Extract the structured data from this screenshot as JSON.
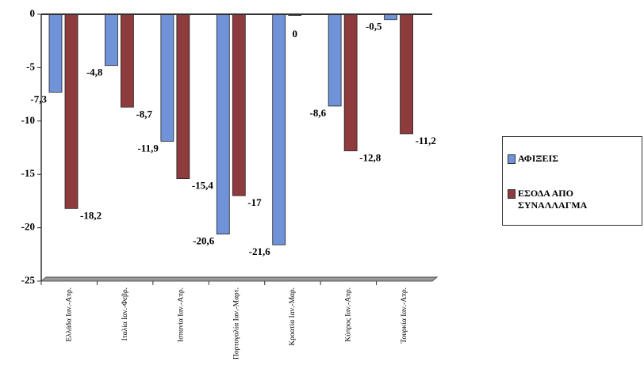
{
  "chart_data": {
    "type": "bar",
    "categories": [
      "Ελλάδα Ιαν.-Απρ.",
      "Ιταλία Ιαν.-Φεβρ.",
      "Ισπανία Ιαν.-Απρ.",
      "Πορτογαλία Ιαν.-Μαρτ.",
      "Κροατία Ιαν.-Μαρ.",
      "Κύπρος Ιαν.-Απρ.",
      "Τουρκία Ιαν.-Απρ."
    ],
    "series": [
      {
        "name": "ΑΦΙΞΕΙΣ",
        "color": "#6f92d8",
        "values": [
          -7.3,
          -4.8,
          -11.9,
          -20.6,
          -21.6,
          -8.6,
          -0.5
        ],
        "value_labels": [
          "-7,3",
          "-4,8",
          "-11,9",
          "-20,6",
          "-21,6",
          "-8,6",
          "-0,5"
        ]
      },
      {
        "name": "ΕΣΟΔΑ ΑΠΟ ΣΥΝΑΛΛΑΓΜΑ",
        "color": "#8e3b3d",
        "values": [
          -18.2,
          -8.7,
          -15.4,
          -17,
          0,
          -12.8,
          -11.2
        ],
        "value_labels": [
          "-18,2",
          "-8,7",
          "-15,4",
          "-17",
          "0",
          "-12,8",
          "-11,2"
        ]
      }
    ],
    "ylim": [
      -25,
      0
    ],
    "yticks": [
      0,
      -5,
      -10,
      -15,
      -20,
      -25
    ]
  }
}
